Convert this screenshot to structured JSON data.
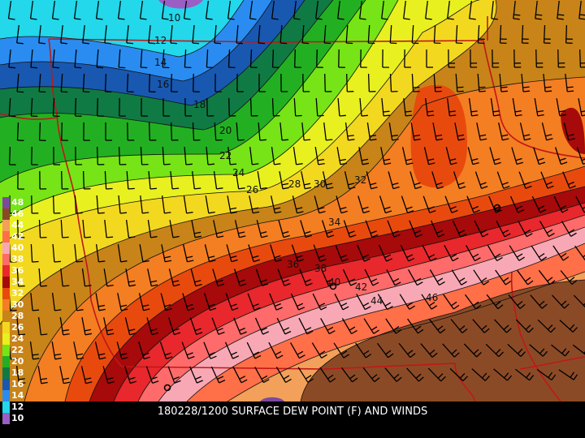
{
  "title": "180228/1200 SURFACE DEW POINT (F) AND WINDS",
  "legend": [
    {
      "value": "48",
      "color": "#7b4a9e"
    },
    {
      "value": "46",
      "color": "#8b4a26"
    },
    {
      "value": "44",
      "color": "#f3a05a"
    },
    {
      "value": "42",
      "color": "#ff6f48"
    },
    {
      "value": "40",
      "color": "#f8a8b4"
    },
    {
      "value": "38",
      "color": "#ff6a6a"
    },
    {
      "value": "36",
      "color": "#e8282c"
    },
    {
      "value": "34",
      "color": "#a60a0a"
    },
    {
      "value": "32",
      "color": "#e84a0e"
    },
    {
      "value": "30",
      "color": "#f47e22"
    },
    {
      "value": "28",
      "color": "#c88418"
    },
    {
      "value": "26",
      "color": "#f3d820"
    },
    {
      "value": "24",
      "color": "#e8f020"
    },
    {
      "value": "22",
      "color": "#76e416"
    },
    {
      "value": "20",
      "color": "#22b022"
    },
    {
      "value": "18",
      "color": "#107a44"
    },
    {
      "value": "16",
      "color": "#1858b0"
    },
    {
      "value": "14",
      "color": "#2a8cf0"
    },
    {
      "value": "12",
      "color": "#22d8ea"
    },
    {
      "value": "10",
      "color": "#9a5ec4"
    }
  ],
  "contour_labels": [
    "10",
    "12",
    "14",
    "16",
    "18",
    "20",
    "22",
    "24",
    "26",
    "28",
    "30",
    "32",
    "34",
    "36",
    "38",
    "40",
    "42",
    "44",
    "46"
  ]
}
